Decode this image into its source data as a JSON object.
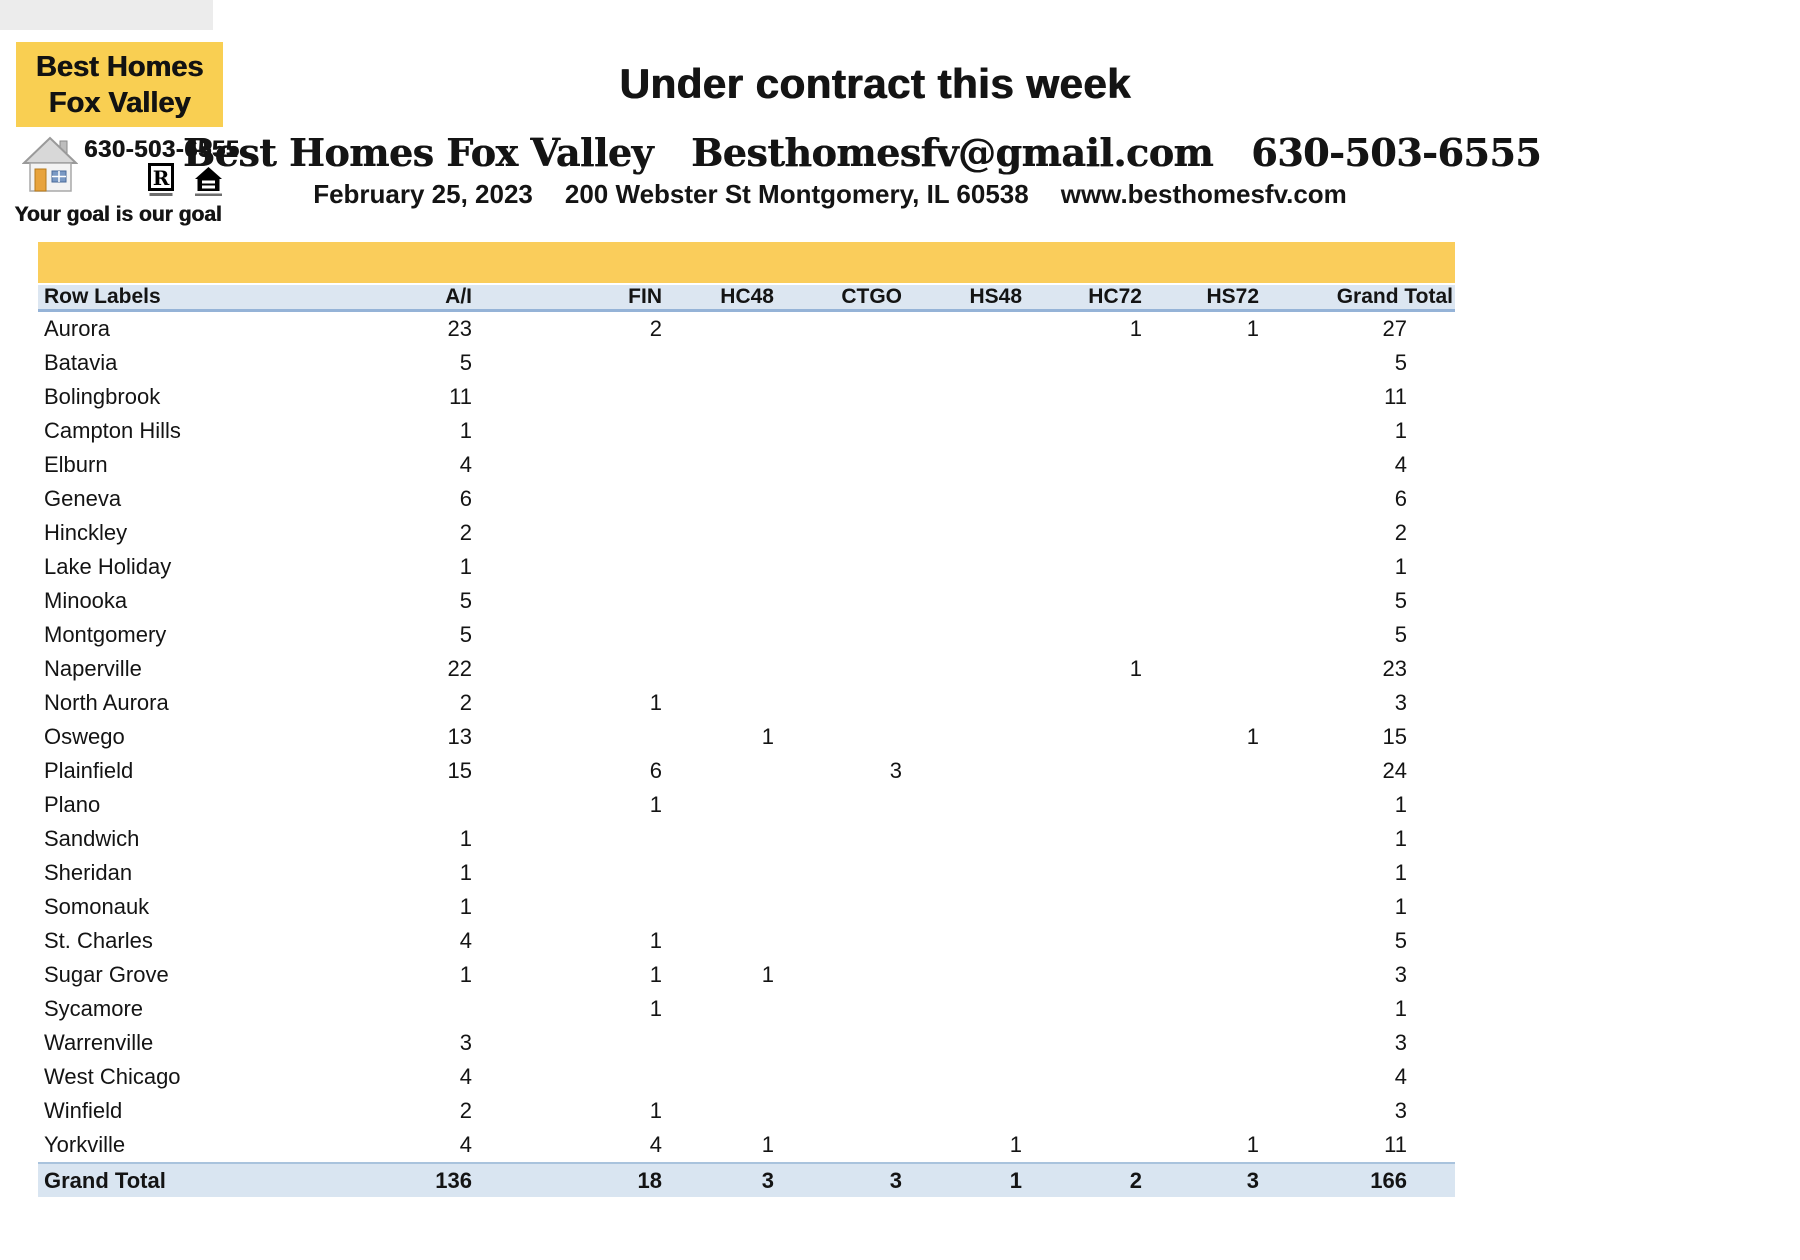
{
  "logo": {
    "title_line1": "Best Homes",
    "title_line2": "Fox Valley",
    "phone": "630-503-6555",
    "tagline": "Your goal is our goal",
    "icons": {
      "house": "house-clipart-icon",
      "realtor": "realtor-r-logo",
      "equal_housing": "equal-housing-logo"
    }
  },
  "header": {
    "title": "Under contract this week",
    "company": "Best Homes Fox Valley",
    "email": "Besthomesfv@gmail.com",
    "phone": "630-503-6555",
    "date": "February 25, 2023",
    "address": "200 Webster St Montgomery, IL 60538",
    "website": "www.besthomesfv.com"
  },
  "table": {
    "columns": [
      "Row Labels",
      "A/I",
      "FIN",
      "HC48",
      "CTGO",
      "HS48",
      "HC72",
      "HS72",
      "Grand Total"
    ],
    "rows": [
      {
        "label": "Aurora",
        "values": [
          "23",
          "2",
          "",
          "",
          "",
          "1",
          "1",
          "27"
        ]
      },
      {
        "label": "Batavia",
        "values": [
          "5",
          "",
          "",
          "",
          "",
          "",
          "",
          "5"
        ]
      },
      {
        "label": "Bolingbrook",
        "values": [
          "11",
          "",
          "",
          "",
          "",
          "",
          "",
          "11"
        ]
      },
      {
        "label": "Campton Hills",
        "values": [
          "1",
          "",
          "",
          "",
          "",
          "",
          "",
          "1"
        ]
      },
      {
        "label": "Elburn",
        "values": [
          "4",
          "",
          "",
          "",
          "",
          "",
          "",
          "4"
        ]
      },
      {
        "label": "Geneva",
        "values": [
          "6",
          "",
          "",
          "",
          "",
          "",
          "",
          "6"
        ]
      },
      {
        "label": "Hinckley",
        "values": [
          "2",
          "",
          "",
          "",
          "",
          "",
          "",
          "2"
        ]
      },
      {
        "label": "Lake Holiday",
        "values": [
          "1",
          "",
          "",
          "",
          "",
          "",
          "",
          "1"
        ]
      },
      {
        "label": "Minooka",
        "values": [
          "5",
          "",
          "",
          "",
          "",
          "",
          "",
          "5"
        ]
      },
      {
        "label": "Montgomery",
        "values": [
          "5",
          "",
          "",
          "",
          "",
          "",
          "",
          "5"
        ]
      },
      {
        "label": "Naperville",
        "values": [
          "22",
          "",
          "",
          "",
          "",
          "1",
          "",
          "23"
        ]
      },
      {
        "label": "North Aurora",
        "values": [
          "2",
          "1",
          "",
          "",
          "",
          "",
          "",
          "3"
        ]
      },
      {
        "label": "Oswego",
        "values": [
          "13",
          "",
          "1",
          "",
          "",
          "",
          "1",
          "15"
        ]
      },
      {
        "label": "Plainfield",
        "values": [
          "15",
          "6",
          "",
          "3",
          "",
          "",
          "",
          "24"
        ]
      },
      {
        "label": "Plano",
        "values": [
          "",
          "1",
          "",
          "",
          "",
          "",
          "",
          "1"
        ]
      },
      {
        "label": "Sandwich",
        "values": [
          "1",
          "",
          "",
          "",
          "",
          "",
          "",
          "1"
        ]
      },
      {
        "label": "Sheridan",
        "values": [
          "1",
          "",
          "",
          "",
          "",
          "",
          "",
          "1"
        ]
      },
      {
        "label": "Somonauk",
        "values": [
          "1",
          "",
          "",
          "",
          "",
          "",
          "",
          "1"
        ]
      },
      {
        "label": "St. Charles",
        "values": [
          "4",
          "1",
          "",
          "",
          "",
          "",
          "",
          "5"
        ]
      },
      {
        "label": "Sugar Grove",
        "values": [
          "1",
          "1",
          "1",
          "",
          "",
          "",
          "",
          "3"
        ]
      },
      {
        "label": "Sycamore",
        "values": [
          "",
          "1",
          "",
          "",
          "",
          "",
          "",
          "1"
        ]
      },
      {
        "label": "Warrenville",
        "values": [
          "3",
          "",
          "",
          "",
          "",
          "",
          "",
          "3"
        ]
      },
      {
        "label": "West Chicago",
        "values": [
          "4",
          "",
          "",
          "",
          "",
          "",
          "",
          "4"
        ]
      },
      {
        "label": "Winfield",
        "values": [
          "2",
          "1",
          "",
          "",
          "",
          "",
          "",
          "3"
        ]
      },
      {
        "label": "Yorkville",
        "values": [
          "4",
          "4",
          "1",
          "",
          "1",
          "",
          "1",
          "11"
        ]
      }
    ],
    "grand_total": {
      "label": "Grand Total",
      "values": [
        "136",
        "18",
        "3",
        "3",
        "1",
        "2",
        "3",
        "166"
      ]
    }
  },
  "colors": {
    "logo_yellow": "#F9CF52",
    "band_yellow": "#FACD5B",
    "header_blue": "#DCE6F1",
    "border_blue": "#95B3D7",
    "grand_total_blue": "#D9E5F1"
  }
}
